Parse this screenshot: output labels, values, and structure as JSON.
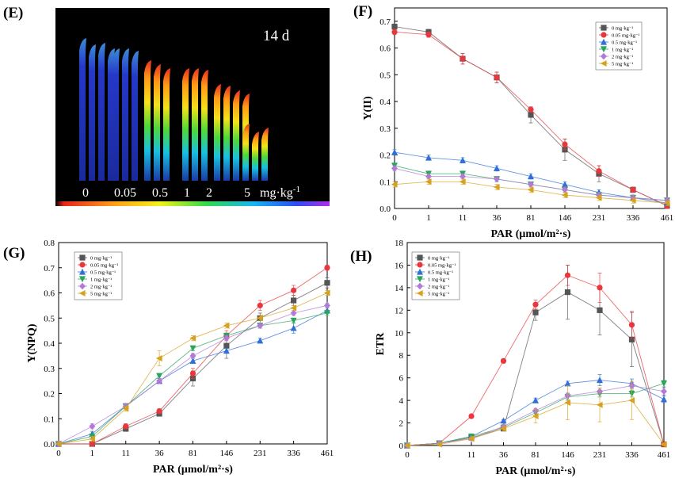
{
  "panels": {
    "E": {
      "letter": "(E)",
      "day_label": "14 d",
      "concentration_labels": [
        "0",
        "0.05",
        "0.5",
        "1",
        "2",
        "5"
      ],
      "unit_label": "mg·kg",
      "unit_exponent": "-1",
      "plant_groups": [
        {
          "label": "0",
          "leaves": 4,
          "intensity": 0.1
        },
        {
          "label": "0.05",
          "leaves": 3,
          "intensity": 0.14
        },
        {
          "label": "0.5",
          "leaves": 3,
          "intensity": 0.55
        },
        {
          "label": "1",
          "leaves": 3,
          "intensity": 0.7
        },
        {
          "label": "2",
          "leaves": 4,
          "intensity": 0.75
        },
        {
          "label": "5",
          "leaves": 3,
          "intensity": 0.85
        }
      ]
    }
  },
  "legend_labels": [
    "0 mg·kg⁻¹",
    "0.05 mg·kg⁻¹",
    "0.5 mg·kg⁻¹",
    "1 mg·kg⁻¹",
    "2 mg·kg⁻¹",
    "5 mg·kg⁻¹"
  ],
  "series_colors": [
    "#555555",
    "#e8383d",
    "#2f6fd6",
    "#2aa55a",
    "#b07ad6",
    "#d6a21e"
  ],
  "series_markers": [
    "square",
    "circle",
    "triangle-up",
    "triangle-down",
    "diamond",
    "triangle-left"
  ],
  "chart_data": [
    {
      "id": "F",
      "letter": "(F)",
      "type": "line",
      "categories": [
        "0",
        "1",
        "11",
        "36",
        "81",
        "146",
        "231",
        "336",
        "461"
      ],
      "xlabel": "PAR (μmol/m²·s)",
      "ylabel": "Y(II)",
      "ylim": [
        0,
        0.75
      ],
      "yticks": [
        0,
        0.1,
        0.2,
        0.3,
        0.4,
        0.5,
        0.6,
        0.7
      ],
      "ytick_labels": [
        "0.0",
        "0.1",
        "0.2",
        "0.3",
        "0.4",
        "0.5",
        "0.6",
        "0.7"
      ],
      "legend_position": "top-right",
      "series": [
        {
          "name": "0 mg·kg⁻¹",
          "values": [
            0.68,
            0.66,
            0.56,
            0.49,
            0.35,
            0.22,
            0.13,
            0.07,
            0.01
          ],
          "errors": [
            0.01,
            0.01,
            0.02,
            0.02,
            0.03,
            0.04,
            0.03,
            0.01,
            0.01
          ]
        },
        {
          "name": "0.05 mg·kg⁻¹",
          "values": [
            0.66,
            0.65,
            0.56,
            0.49,
            0.37,
            0.24,
            0.14,
            0.07,
            0.01
          ],
          "errors": [
            0.01,
            0.01,
            0.02,
            0.02,
            0.01,
            0.02,
            0.02,
            0.01,
            0.01
          ]
        },
        {
          "name": "0.5 mg·kg⁻¹",
          "values": [
            0.21,
            0.19,
            0.18,
            0.15,
            0.12,
            0.09,
            0.06,
            0.04,
            0.02
          ],
          "errors": [
            0.01,
            0.01,
            0.01,
            0.01,
            0.01,
            0.01,
            0.01,
            0.01,
            0.01
          ]
        },
        {
          "name": "1 mg·kg⁻¹",
          "values": [
            0.16,
            0.13,
            0.13,
            0.11,
            0.09,
            0.07,
            0.05,
            0.04,
            0.03
          ],
          "errors": [
            0.01,
            0.01,
            0.01,
            0.01,
            0.01,
            0.01,
            0.01,
            0.01,
            0.01
          ]
        },
        {
          "name": "2 mg·kg⁻¹",
          "values": [
            0.15,
            0.12,
            0.12,
            0.11,
            0.09,
            0.07,
            0.05,
            0.04,
            0.03
          ],
          "errors": [
            0.01,
            0.01,
            0.01,
            0.01,
            0.01,
            0.01,
            0.01,
            0.01,
            0.01
          ]
        },
        {
          "name": "5 mg·kg⁻¹",
          "values": [
            0.09,
            0.1,
            0.1,
            0.08,
            0.07,
            0.05,
            0.04,
            0.03,
            0.02
          ],
          "errors": [
            0.01,
            0.01,
            0.01,
            0.01,
            0.01,
            0.01,
            0.01,
            0.01,
            0.01
          ]
        }
      ]
    },
    {
      "id": "G",
      "letter": "(G)",
      "type": "line",
      "categories": [
        "0",
        "1",
        "11",
        "36",
        "81",
        "146",
        "231",
        "336",
        "461"
      ],
      "xlabel": "PAR (μmol/m²·s)",
      "ylabel": "Y(NPQ)",
      "ylim": [
        0,
        0.8
      ],
      "yticks": [
        0,
        0.1,
        0.2,
        0.3,
        0.4,
        0.5,
        0.6,
        0.7,
        0.8
      ],
      "ytick_labels": [
        "0.0",
        "0.1",
        "0.2",
        "0.3",
        "0.4",
        "0.5",
        "0.6",
        "0.7",
        "0.8"
      ],
      "legend_position": "top-left",
      "series": [
        {
          "name": "0 mg·kg⁻¹",
          "values": [
            0.0,
            0.0,
            0.06,
            0.12,
            0.26,
            0.39,
            0.5,
            0.57,
            0.64
          ],
          "errors": [
            0.0,
            0.0,
            0.01,
            0.01,
            0.03,
            0.05,
            0.02,
            0.02,
            0.02
          ]
        },
        {
          "name": "0.05 mg·kg⁻¹",
          "values": [
            0.0,
            0.0,
            0.07,
            0.13,
            0.28,
            0.43,
            0.55,
            0.61,
            0.7
          ],
          "errors": [
            0.0,
            0.0,
            0.01,
            0.01,
            0.02,
            0.02,
            0.02,
            0.02,
            0.01
          ]
        },
        {
          "name": "0.5 mg·kg⁻¹",
          "values": [
            0.0,
            0.04,
            0.15,
            0.25,
            0.33,
            0.37,
            0.41,
            0.46,
            0.53
          ],
          "errors": [
            0.0,
            0.01,
            0.01,
            0.01,
            0.01,
            0.01,
            0.01,
            0.02,
            0.01
          ]
        },
        {
          "name": "1 mg·kg⁻¹",
          "values": [
            0.0,
            0.03,
            0.15,
            0.27,
            0.38,
            0.43,
            0.47,
            0.49,
            0.52
          ],
          "errors": [
            0.0,
            0.01,
            0.01,
            0.01,
            0.01,
            0.01,
            0.01,
            0.01,
            0.01
          ]
        },
        {
          "name": "2 mg·kg⁻¹",
          "values": [
            0.0,
            0.07,
            0.15,
            0.25,
            0.35,
            0.42,
            0.47,
            0.52,
            0.55
          ],
          "errors": [
            0.0,
            0.01,
            0.01,
            0.01,
            0.01,
            0.01,
            0.01,
            0.01,
            0.01
          ]
        },
        {
          "name": "5 mg·kg⁻¹",
          "values": [
            0.0,
            0.02,
            0.14,
            0.34,
            0.42,
            0.47,
            0.5,
            0.54,
            0.6
          ],
          "errors": [
            0.0,
            0.01,
            0.01,
            0.03,
            0.01,
            0.01,
            0.01,
            0.01,
            0.01
          ]
        }
      ]
    },
    {
      "id": "H",
      "letter": "(H)",
      "type": "line",
      "categories": [
        "0",
        "1",
        "11",
        "36",
        "81",
        "146",
        "231",
        "336",
        "461"
      ],
      "xlabel": "PAR (μmol/m²·s)",
      "ylabel": "ETR",
      "ylim": [
        0,
        18
      ],
      "yticks": [
        0,
        2,
        4,
        6,
        8,
        10,
        12,
        14,
        16,
        18
      ],
      "ytick_labels": [
        "0",
        "2",
        "4",
        "6",
        "8",
        "10",
        "12",
        "14",
        "16",
        "18"
      ],
      "legend_position": "top-left",
      "series": [
        {
          "name": "0 mg·kg⁻¹",
          "values": [
            0.0,
            0.2,
            0.7,
            1.5,
            11.8,
            13.6,
            12.0,
            9.4,
            0.1
          ],
          "errors": [
            0.0,
            0.1,
            0.1,
            0.2,
            0.7,
            2.4,
            2.2,
            2.4,
            0.1
          ]
        },
        {
          "name": "0.05 mg·kg⁻¹",
          "values": [
            0.0,
            0.2,
            2.6,
            7.5,
            12.5,
            15.1,
            14.0,
            10.7,
            0.1
          ],
          "errors": [
            0.0,
            0.1,
            0.1,
            0.2,
            0.4,
            0.9,
            1.3,
            1.2,
            0.1
          ]
        },
        {
          "name": "0.5 mg·kg⁻¹",
          "values": [
            0.0,
            0.2,
            0.8,
            2.2,
            4.0,
            5.5,
            5.8,
            5.5,
            4.1
          ],
          "errors": [
            0.0,
            0.1,
            0.1,
            0.1,
            0.2,
            0.2,
            0.5,
            0.4,
            0.3
          ]
        },
        {
          "name": "1 mg·kg⁻¹",
          "values": [
            0.0,
            0.2,
            0.8,
            1.6,
            2.9,
            4.3,
            4.6,
            4.6,
            5.5
          ],
          "errors": [
            0.0,
            0.1,
            0.1,
            0.1,
            0.3,
            0.3,
            0.3,
            0.3,
            0.3
          ]
        },
        {
          "name": "2 mg·kg⁻¹",
          "values": [
            0.0,
            0.2,
            0.6,
            1.7,
            3.1,
            4.4,
            4.8,
            5.3,
            4.8
          ],
          "errors": [
            0.0,
            0.1,
            0.1,
            0.1,
            0.2,
            0.3,
            0.3,
            0.3,
            0.3
          ]
        },
        {
          "name": "5 mg·kg⁻¹",
          "values": [
            0.0,
            0.1,
            0.6,
            1.5,
            2.6,
            3.8,
            3.6,
            4.0,
            0.1
          ],
          "errors": [
            0.0,
            0.1,
            0.1,
            0.2,
            0.6,
            1.5,
            1.5,
            1.7,
            0.1
          ]
        }
      ]
    }
  ]
}
